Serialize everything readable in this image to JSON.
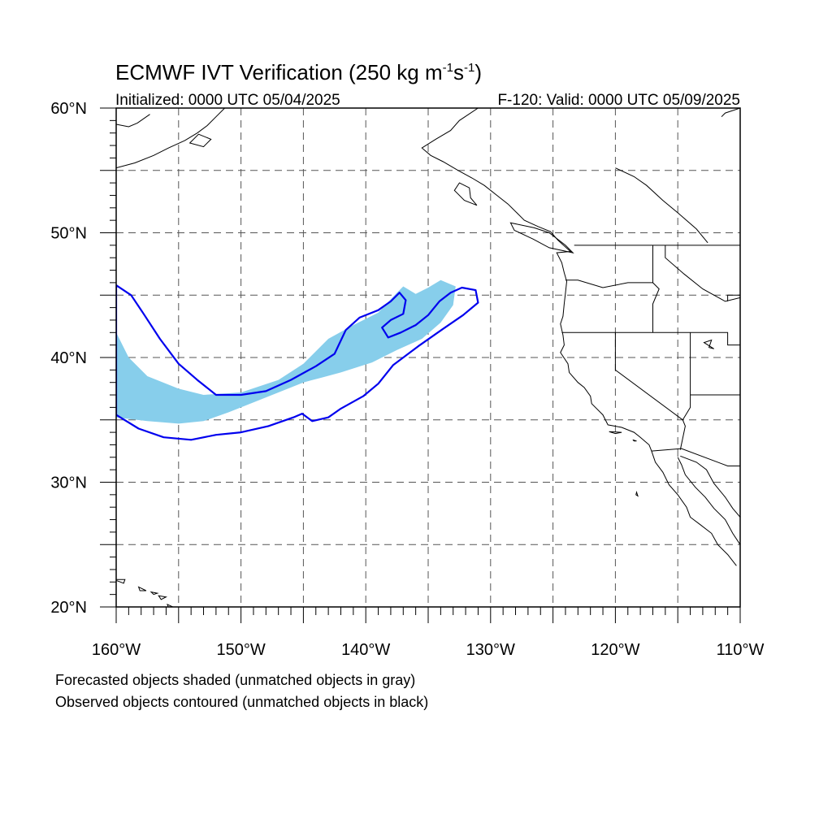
{
  "title": {
    "main": "ECMWF IVT Verification (250 kg m",
    "exp1": "-1",
    "mid": "s",
    "exp2": "-1",
    "close": ")"
  },
  "subtitle": {
    "initialized": "Initialized: 0000 UTC 05/04/2025",
    "valid": "F-120: Valid: 0000 UTC 05/09/2025"
  },
  "axes": {
    "lon_min": -160,
    "lon_max": -110,
    "lat_min": 20,
    "lat_max": 60,
    "lat_labels": [
      {
        "value": 60,
        "text": "60°N"
      },
      {
        "value": 50,
        "text": "50°N"
      },
      {
        "value": 40,
        "text": "40°N"
      },
      {
        "value": 30,
        "text": "30°N"
      },
      {
        "value": 20,
        "text": "20°N"
      }
    ],
    "lon_labels": [
      {
        "value": -160,
        "text": "160°W"
      },
      {
        "value": -150,
        "text": "150°W"
      },
      {
        "value": -140,
        "text": "140°W"
      },
      {
        "value": -130,
        "text": "130°W"
      },
      {
        "value": -120,
        "text": "120°W"
      },
      {
        "value": -110,
        "text": "110°W"
      }
    ],
    "grid_lon": [
      -155,
      -150,
      -145,
      -140,
      -135,
      -130,
      -125,
      -120,
      -115
    ],
    "grid_lat": [
      25,
      30,
      35,
      40,
      45,
      50,
      55
    ]
  },
  "colors": {
    "forecast_fill": "#87ceeb",
    "observed_line": "#0000ee",
    "coast": "#000000",
    "grid": "#555555"
  },
  "notes": {
    "line1": "Forecasted objects shaded (unmatched objects in gray)",
    "line2": "Observed objects contoured (unmatched objects in black)"
  },
  "forecast_object": [
    [
      -160,
      42
    ],
    [
      -159,
      40
    ],
    [
      -157.5,
      38.5
    ],
    [
      -155,
      37.5
    ],
    [
      -153,
      37.0
    ],
    [
      -150,
      37.2
    ],
    [
      -147,
      38.2
    ],
    [
      -145,
      39.5
    ],
    [
      -143,
      41.5
    ],
    [
      -141,
      42.6
    ],
    [
      -139,
      43.6
    ],
    [
      -137.5,
      45.2
    ],
    [
      -137,
      45.7
    ],
    [
      -136,
      45.1
    ],
    [
      -135,
      45.6
    ],
    [
      -134,
      46.2
    ],
    [
      -132.8,
      45.7
    ],
    [
      -133,
      44.2
    ],
    [
      -134,
      42.8
    ],
    [
      -135.5,
      41.5
    ],
    [
      -137.5,
      40.6
    ],
    [
      -139.5,
      39.6
    ],
    [
      -142,
      38.8
    ],
    [
      -143.5,
      38.4
    ],
    [
      -145,
      38.0
    ],
    [
      -147,
      37.2
    ],
    [
      -149,
      36.4
    ],
    [
      -151,
      35.6
    ],
    [
      -153,
      34.9
    ],
    [
      -155,
      34.7
    ],
    [
      -157.5,
      34.9
    ],
    [
      -160,
      35.2
    ]
  ],
  "observed_object": [
    [
      -160,
      45.8
    ],
    [
      -158.8,
      45.0
    ],
    [
      -157.8,
      43.5
    ],
    [
      -156.5,
      41.5
    ],
    [
      -155,
      39.5
    ],
    [
      -153.5,
      38.2
    ],
    [
      -152,
      37.0
    ],
    [
      -150,
      37.0
    ],
    [
      -148,
      37.3
    ],
    [
      -146,
      38.2
    ],
    [
      -144,
      39.3
    ],
    [
      -142.5,
      40.3
    ],
    [
      -141.6,
      42.2
    ],
    [
      -140.5,
      43.2
    ],
    [
      -139,
      43.8
    ],
    [
      -138,
      44.5
    ],
    [
      -137.3,
      45.2
    ],
    [
      -136.8,
      44.6
    ],
    [
      -137,
      43.5
    ],
    [
      -138,
      43.0
    ],
    [
      -138.7,
      42.4
    ],
    [
      -138.2,
      41.6
    ],
    [
      -137.2,
      42.0
    ],
    [
      -136,
      42.6
    ],
    [
      -135,
      43.4
    ],
    [
      -134.1,
      44.5
    ],
    [
      -133.2,
      45.2
    ],
    [
      -132.3,
      45.6
    ],
    [
      -131.2,
      45.4
    ],
    [
      -131.0,
      44.4
    ],
    [
      -132.2,
      43.4
    ],
    [
      -133.8,
      42.3
    ],
    [
      -135.8,
      40.9
    ],
    [
      -137.8,
      39.4
    ],
    [
      -139,
      37.9
    ],
    [
      -140.2,
      36.9
    ],
    [
      -142,
      35.9
    ],
    [
      -143,
      35.2
    ],
    [
      -144.3,
      34.9
    ],
    [
      -145.1,
      35.5
    ],
    [
      -145.8,
      35.2
    ],
    [
      -147.8,
      34.5
    ],
    [
      -150,
      34.0
    ],
    [
      -152,
      33.8
    ],
    [
      -154,
      33.4
    ],
    [
      -156.2,
      33.6
    ],
    [
      -158.2,
      34.3
    ],
    [
      -160,
      35.4
    ]
  ],
  "coastline": [
    [
      -131,
      60
    ],
    [
      -132.5,
      59
    ],
    [
      -133.2,
      58.2
    ],
    [
      -134.4,
      57.5
    ],
    [
      -135.5,
      56.8
    ],
    [
      -134.8,
      56.2
    ],
    [
      -133.8,
      55.7
    ],
    [
      -132.6,
      55.0
    ],
    [
      -131.5,
      54.4
    ],
    [
      -130.5,
      53.8
    ],
    [
      -129.5,
      53.0
    ],
    [
      -128.6,
      52.3
    ],
    [
      -127.9,
      51.6
    ],
    [
      -127.3,
      51.0
    ],
    [
      -126.2,
      50.5
    ],
    [
      -125.2,
      50.1
    ],
    [
      -124.6,
      49.4
    ],
    [
      -123.6,
      48.5
    ],
    [
      -124.7,
      48.4
    ],
    [
      -124.3,
      47.6
    ],
    [
      -124.1,
      46.8
    ],
    [
      -123.9,
      46.1
    ],
    [
      -124.0,
      45.2
    ],
    [
      -124.1,
      44.3
    ],
    [
      -124.2,
      43.3
    ],
    [
      -124.4,
      42.7
    ],
    [
      -124.2,
      41.8
    ],
    [
      -124.1,
      41.0
    ],
    [
      -124.4,
      40.4
    ],
    [
      -123.8,
      39.5
    ],
    [
      -123.7,
      38.8
    ],
    [
      -123.0,
      38.0
    ],
    [
      -122.5,
      37.6
    ],
    [
      -122.0,
      36.9
    ],
    [
      -121.9,
      36.3
    ],
    [
      -121.0,
      35.4
    ],
    [
      -120.6,
      34.6
    ],
    [
      -119.5,
      34.4
    ],
    [
      -118.5,
      34.0
    ],
    [
      -118.0,
      33.6
    ],
    [
      -117.3,
      33.0
    ],
    [
      -117.1,
      32.5
    ],
    [
      -116.8,
      31.6
    ],
    [
      -116.2,
      30.8
    ],
    [
      -115.7,
      29.8
    ],
    [
      -115.0,
      29.0
    ],
    [
      -114.3,
      28.0
    ],
    [
      -114.0,
      27.2
    ],
    [
      -113.2,
      26.6
    ],
    [
      -112.3,
      25.9
    ],
    [
      -111.8,
      25.0
    ],
    [
      -111.0,
      24.2
    ],
    [
      -110.3,
      23.3
    ]
  ],
  "gulf_coast": [
    [
      -115.0,
      32.0
    ],
    [
      -114.7,
      31.4
    ],
    [
      -114.4,
      30.6
    ],
    [
      -113.6,
      29.6
    ],
    [
      -112.8,
      28.8
    ],
    [
      -112.1,
      27.9
    ],
    [
      -111.2,
      27.0
    ],
    [
      -110.6,
      25.9
    ],
    [
      -110.0,
      25.0
    ]
  ],
  "mainland_east": [
    [
      -114.8,
      32.1
    ],
    [
      -113.5,
      31.6
    ],
    [
      -112.7,
      31.0
    ],
    [
      -112.1,
      29.9
    ],
    [
      -111.2,
      28.8
    ],
    [
      -110.6,
      27.9
    ],
    [
      -110.0,
      27.2
    ]
  ],
  "alaska_coast": [
    [
      -160,
      55.2
    ],
    [
      -158.5,
      55.6
    ],
    [
      -157,
      56.2
    ],
    [
      -155.8,
      56.8
    ],
    [
      -154.5,
      57.4
    ],
    [
      -153.5,
      58.0
    ],
    [
      -152.7,
      58.6
    ],
    [
      -152.0,
      59.3
    ],
    [
      -151.3,
      60
    ]
  ],
  "alaska_coast2": [
    [
      -160,
      58.7
    ],
    [
      -159,
      58.5
    ],
    [
      -158.3,
      58.8
    ],
    [
      -157.3,
      59.5
    ]
  ],
  "islands": [
    [
      [
        -153.4,
        57.9
      ],
      [
        -152.4,
        57.5
      ],
      [
        -153.0,
        56.9
      ],
      [
        -154.1,
        57.2
      ],
      [
        -153.4,
        57.9
      ]
    ],
    [
      [
        -132.5,
        54.0
      ],
      [
        -131.7,
        53.6
      ],
      [
        -131.6,
        52.8
      ],
      [
        -131.1,
        52.2
      ],
      [
        -132.1,
        52.6
      ],
      [
        -132.9,
        53.4
      ],
      [
        -132.5,
        54.0
      ]
    ],
    [
      [
        -128.4,
        50.8
      ],
      [
        -126.5,
        50.4
      ],
      [
        -125.3,
        50.0
      ],
      [
        -124.0,
        49.0
      ],
      [
        -123.4,
        48.4
      ],
      [
        -125.3,
        48.8
      ],
      [
        -126.6,
        49.5
      ],
      [
        -128.1,
        50.2
      ],
      [
        -128.4,
        50.8
      ]
    ],
    [
      [
        -160.2,
        22.2
      ],
      [
        -159.3,
        22.2
      ],
      [
        -159.4,
        21.9
      ],
      [
        -160.2,
        22.2
      ]
    ],
    [
      [
        -158.2,
        21.6
      ],
      [
        -157.6,
        21.3
      ],
      [
        -158.1,
        21.3
      ],
      [
        -158.2,
        21.6
      ]
    ],
    [
      [
        -157.2,
        21.2
      ],
      [
        -156.7,
        21.1
      ],
      [
        -157.0,
        21.0
      ],
      [
        -157.2,
        21.2
      ]
    ],
    [
      [
        -156.6,
        20.9
      ],
      [
        -156.0,
        20.8
      ],
      [
        -156.4,
        20.6
      ],
      [
        -156.6,
        20.9
      ]
    ],
    [
      [
        -155.9,
        20.2
      ],
      [
        -155.0,
        19.8
      ],
      [
        -155.6,
        19.4
      ],
      [
        -155.9,
        20.2
      ]
    ],
    [
      [
        -120.5,
        34.05
      ],
      [
        -119.5,
        34.0
      ],
      [
        -120.0,
        33.9
      ],
      [
        -120.5,
        34.05
      ]
    ],
    [
      [
        -118.6,
        33.4
      ],
      [
        -118.3,
        33.3
      ],
      [
        -118.5,
        33.3
      ],
      [
        -118.6,
        33.4
      ]
    ],
    [
      [
        -118.3,
        29.2
      ],
      [
        -118.2,
        28.9
      ],
      [
        -118.35,
        29.0
      ],
      [
        -118.3,
        29.2
      ]
    ],
    [
      [
        -112.9,
        41.2
      ],
      [
        -112.3,
        41.4
      ],
      [
        -112.5,
        40.8
      ],
      [
        -112.1,
        40.7
      ],
      [
        -112.9,
        41.2
      ]
    ]
  ],
  "borders": [
    [
      [
        -123.3,
        49.0
      ],
      [
        -110,
        49.0
      ]
    ],
    [
      [
        -124.3,
        42.0
      ],
      [
        -111.0,
        42.0
      ],
      [
        -111.0,
        41.0
      ],
      [
        -110,
        41.0
      ]
    ],
    [
      [
        -120.0,
        42.0
      ],
      [
        -120.0,
        39.0
      ],
      [
        -114.6,
        35.0
      ]
    ],
    [
      [
        -114.6,
        35.0
      ],
      [
        -114.0,
        36.0
      ],
      [
        -114.0,
        42.0
      ]
    ],
    [
      [
        -114.0,
        37.0
      ],
      [
        -110,
        37.0
      ]
    ],
    [
      [
        -117.0,
        49.0
      ],
      [
        -117.0,
        46.0
      ],
      [
        -116.7,
        45.7
      ],
      [
        -116.5,
        45.5
      ],
      [
        -117.0,
        44.3
      ],
      [
        -117.0,
        42.0
      ]
    ],
    [
      [
        -124.0,
        46.2
      ],
      [
        -123.0,
        46.2
      ],
      [
        -121.0,
        45.6
      ],
      [
        -119.0,
        46.0
      ],
      [
        -117.0,
        46.0
      ]
    ],
    [
      [
        -116.0,
        49.0
      ],
      [
        -116.0,
        48.0
      ],
      [
        -114.5,
        46.7
      ],
      [
        -113.0,
        45.5
      ],
      [
        -111.2,
        44.5
      ],
      [
        -110,
        44.8
      ]
    ],
    [
      [
        -111.0,
        44.5
      ],
      [
        -111.0,
        45.0
      ],
      [
        -110,
        45.0
      ]
    ],
    [
      [
        -117.1,
        32.5
      ],
      [
        -114.7,
        32.7
      ],
      [
        -111.0,
        31.3
      ],
      [
        -110,
        31.3
      ]
    ],
    [
      [
        -114.8,
        32.6
      ],
      [
        -114.4,
        34.5
      ],
      [
        -114.6,
        35.0
      ]
    ]
  ],
  "canada_inland": [
    [
      -120,
      55.2
    ],
    [
      -118.5,
      54.5
    ],
    [
      -117.5,
      53.8
    ],
    [
      -116.2,
      52.6
    ],
    [
      -115.0,
      51.6
    ],
    [
      -113.5,
      50.3
    ],
    [
      -112.6,
      49.2
    ]
  ],
  "top_right_coast": [
    [
      -110,
      60
    ],
    [
      -111.2,
      59.6
    ],
    [
      -111.5,
      59.3
    ]
  ]
}
